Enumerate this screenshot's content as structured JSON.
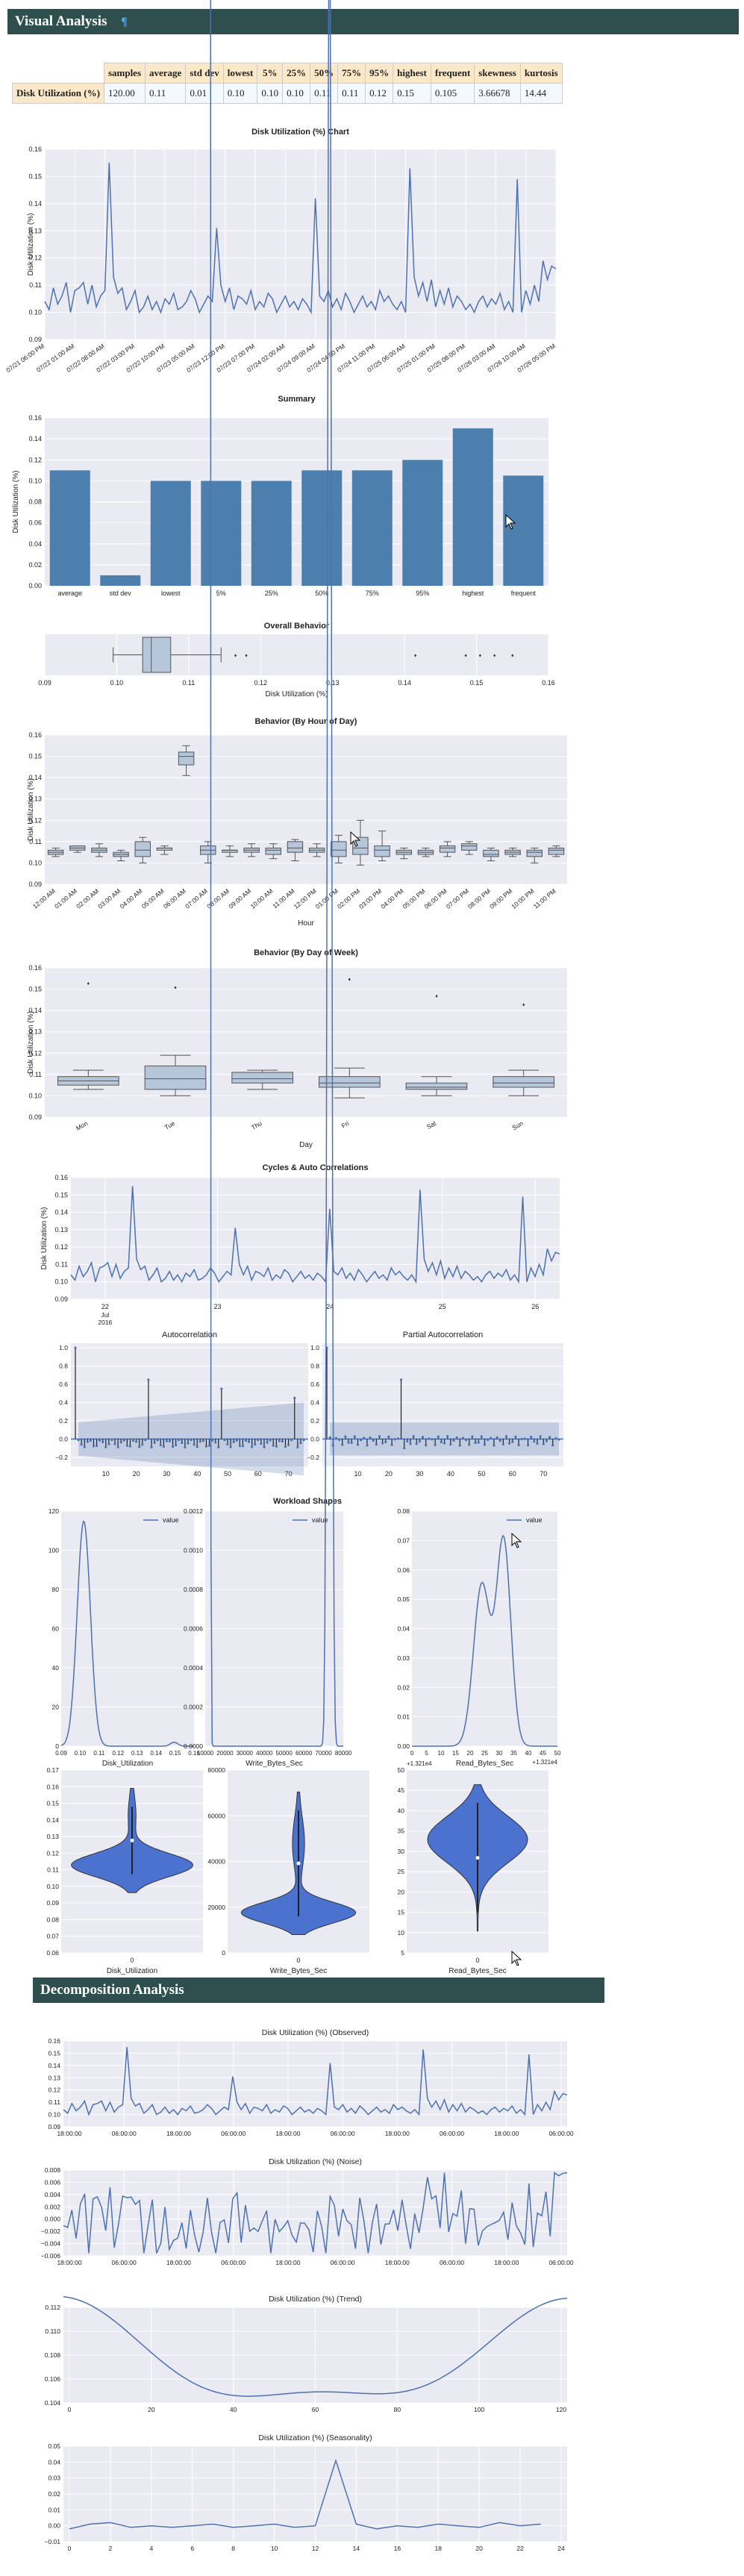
{
  "sections": {
    "visual": {
      "title": "Visual Analysis",
      "anchor": "¶"
    },
    "decomposition": {
      "title": "Decomposition Analysis"
    }
  },
  "stats_table": {
    "row_label": "Disk Utilization (%)",
    "headers": [
      "samples",
      "average",
      "std dev",
      "lowest",
      "5%",
      "25%",
      "50%",
      "75%",
      "95%",
      "highest",
      "frequent",
      "skewness",
      "kurtosis"
    ],
    "values": [
      "120.00",
      "0.11",
      "0.01",
      "0.10",
      "0.10",
      "0.10",
      "0.11",
      "0.11",
      "0.12",
      "0.15",
      "0.105",
      "3.66678",
      "14.44"
    ]
  },
  "colors": {
    "line": "#4c72b0",
    "bar": "#4c7fae",
    "box": "#b6c7dc",
    "violin": "#4c72d0",
    "panel": "#eaeaf2",
    "banner": "#2f4f4f"
  },
  "chart_data": [
    {
      "id": "ts",
      "type": "line",
      "title": "Disk Utilization (%) Chart",
      "ylabel": "Disk Utilization (%)",
      "ylim": [
        0.09,
        0.16
      ],
      "yticks": [
        "0.09",
        "0.10",
        "0.11",
        "0.12",
        "0.13",
        "0.14",
        "0.15",
        "0.16"
      ],
      "xticks": [
        "07/21 06:00 PM",
        "07/22 01:00 AM",
        "07/22 08:00 AM",
        "07/22 03:00 PM",
        "07/22 10:00 PM",
        "07/23 05:00 AM",
        "07/23 12:00 PM",
        "07/23 07:00 PM",
        "07/24 02:00 AM",
        "07/24 09:00 AM",
        "07/24 04:00 PM",
        "07/24 11:00 PM",
        "07/25 06:00 AM",
        "07/25 01:00 PM",
        "07/25 08:00 PM",
        "07/26 03:00 AM",
        "07/26 10:00 AM",
        "07/26 05:00 PM"
      ],
      "values": [
        0.104,
        0.101,
        0.109,
        0.103,
        0.106,
        0.111,
        0.1,
        0.108,
        0.109,
        0.111,
        0.103,
        0.11,
        0.102,
        0.106,
        0.108,
        0.155,
        0.113,
        0.107,
        0.109,
        0.101,
        0.104,
        0.108,
        0.1,
        0.102,
        0.106,
        0.101,
        0.104,
        0.1,
        0.105,
        0.103,
        0.107,
        0.101,
        0.102,
        0.104,
        0.108,
        0.105,
        0.1,
        0.103,
        0.106,
        0.104,
        0.131,
        0.11,
        0.104,
        0.109,
        0.101,
        0.106,
        0.105,
        0.103,
        0.108,
        0.101,
        0.104,
        0.102,
        0.107,
        0.105,
        0.1,
        0.103,
        0.106,
        0.102,
        0.104,
        0.101,
        0.105,
        0.103,
        0.1,
        0.142,
        0.106,
        0.104,
        0.108,
        0.102,
        0.105,
        0.101,
        0.107,
        0.104,
        0.1,
        0.103,
        0.106,
        0.102,
        0.104,
        0.101,
        0.108,
        0.104,
        0.106,
        0.103,
        0.101,
        0.104,
        0.1,
        0.153,
        0.113,
        0.106,
        0.111,
        0.104,
        0.112,
        0.102,
        0.108,
        0.103,
        0.109,
        0.102,
        0.106,
        0.104,
        0.101,
        0.103,
        0.1,
        0.104,
        0.106,
        0.102,
        0.105,
        0.103,
        0.107,
        0.101,
        0.104,
        0.1,
        0.149,
        0.1,
        0.108,
        0.103,
        0.11,
        0.104,
        0.119,
        0.112,
        0.117,
        0.116
      ]
    },
    {
      "id": "summary",
      "type": "bar",
      "title": "Summary",
      "ylabel": "Disk Utilization (%)",
      "ylim": [
        0,
        0.16
      ],
      "yticks": [
        "0.00",
        "0.02",
        "0.04",
        "0.06",
        "0.08",
        "0.10",
        "0.12",
        "0.14",
        "0.16"
      ],
      "categories": [
        "average",
        "std dev",
        "lowest",
        "5%",
        "25%",
        "50%",
        "75%",
        "95%",
        "highest",
        "frequent"
      ],
      "values": [
        0.11,
        0.01,
        0.1,
        0.1,
        0.1,
        0.11,
        0.11,
        0.12,
        0.15,
        0.105
      ]
    },
    {
      "id": "overall",
      "type": "box",
      "title": "Overall Behavior",
      "xlabel": "Disk Utilization (%)",
      "xlim": [
        0.09,
        0.16
      ],
      "xticks": [
        "0.09",
        "0.10",
        "0.11",
        "0.12",
        "0.13",
        "0.14",
        "0.15",
        "0.16"
      ],
      "box": {
        "min": 0.0995,
        "q1": 0.1036,
        "median": 0.1048,
        "q3": 0.1075,
        "max": 0.1145,
        "fliers": [
          0.1165,
          0.118,
          0.1415,
          0.1485,
          0.1505,
          0.1525,
          0.155
        ]
      }
    },
    {
      "id": "hourly",
      "type": "box",
      "title": "Behavior (By Hour of Day)",
      "xlabel": "Hour",
      "ylabel": "Disk Utilization (%)",
      "ylim": [
        0.09,
        0.16
      ],
      "yticks": [
        "0.09",
        "0.10",
        "0.11",
        "0.12",
        "0.13",
        "0.14",
        "0.15",
        "0.16"
      ],
      "categories": [
        "12:00 AM",
        "01:00 AM",
        "02:00 AM",
        "03:00 AM",
        "04:00 AM",
        "05:00 AM",
        "06:00 AM",
        "07:00 AM",
        "08:00 AM",
        "09:00 AM",
        "10:00 AM",
        "11:00 AM",
        "12:00 PM",
        "01:00 PM",
        "02:00 PM",
        "03:00 PM",
        "04:00 PM",
        "05:00 PM",
        "06:00 PM",
        "07:00 PM",
        "08:00 PM",
        "09:00 PM",
        "10:00 PM",
        "11:00 PM"
      ],
      "boxes": [
        [
          0.103,
          0.104,
          0.105,
          0.106,
          0.107
        ],
        [
          0.105,
          0.106,
          0.107,
          0.108,
          0.108
        ],
        [
          0.103,
          0.105,
          0.106,
          0.107,
          0.109
        ],
        [
          0.101,
          0.103,
          0.104,
          0.105,
          0.106
        ],
        [
          0.1,
          0.103,
          0.106,
          0.11,
          0.112
        ],
        [
          0.104,
          0.106,
          0.107,
          0.107,
          0.108
        ],
        [
          0.141,
          0.146,
          0.15,
          0.152,
          0.155
        ],
        [
          0.1,
          0.104,
          0.106,
          0.108,
          0.11
        ],
        [
          0.103,
          0.105,
          0.106,
          0.106,
          0.108
        ],
        [
          0.103,
          0.105,
          0.106,
          0.107,
          0.109
        ],
        [
          0.102,
          0.104,
          0.106,
          0.107,
          0.109
        ],
        [
          0.101,
          0.105,
          0.107,
          0.11,
          0.111
        ],
        [
          0.103,
          0.105,
          0.106,
          0.107,
          0.109
        ],
        [
          0.1,
          0.103,
          0.106,
          0.11,
          0.113
        ],
        [
          0.099,
          0.104,
          0.107,
          0.112,
          0.12
        ],
        [
          0.101,
          0.103,
          0.106,
          0.108,
          0.115
        ],
        [
          0.102,
          0.104,
          0.105,
          0.106,
          0.107
        ],
        [
          0.103,
          0.104,
          0.105,
          0.106,
          0.107
        ],
        [
          0.103,
          0.105,
          0.107,
          0.108,
          0.11
        ],
        [
          0.104,
          0.106,
          0.108,
          0.109,
          0.11
        ],
        [
          0.101,
          0.103,
          0.104,
          0.106,
          0.107
        ],
        [
          0.103,
          0.104,
          0.105,
          0.106,
          0.107
        ],
        [
          0.1,
          0.103,
          0.105,
          0.106,
          0.107
        ],
        [
          0.103,
          0.104,
          0.106,
          0.107,
          0.108
        ]
      ]
    },
    {
      "id": "daily",
      "type": "box",
      "title": "Behavior (By Day of Week)",
      "xlabel": "Day",
      "ylabel": "Disk Utilization (%)",
      "ylim": [
        0.09,
        0.16
      ],
      "yticks": [
        "0.09",
        "0.10",
        "0.11",
        "0.12",
        "0.13",
        "0.14",
        "0.15",
        "0.16"
      ],
      "categories": [
        "Mon",
        "Tue",
        "Thu",
        "Fri",
        "Sat",
        "Sun"
      ],
      "boxes": [
        [
          0.103,
          0.105,
          0.107,
          0.109,
          0.112
        ],
        [
          0.1,
          0.103,
          0.108,
          0.114,
          0.119
        ],
        [
          0.103,
          0.106,
          0.108,
          0.111,
          0.112
        ],
        [
          0.099,
          0.104,
          0.106,
          0.109,
          0.113
        ],
        [
          0.1,
          0.103,
          0.104,
          0.106,
          0.109
        ],
        [
          0.1,
          0.104,
          0.106,
          0.109,
          0.112
        ]
      ],
      "fliers": [
        [
          0.153
        ],
        [
          0.151
        ],
        [],
        [
          0.155
        ],
        [
          0.147
        ],
        [
          0.143
        ]
      ]
    },
    {
      "id": "cycles",
      "type": "line",
      "title": "Cycles & Auto Correlations",
      "ylabel": "Disk Utilization (%)",
      "ylim": [
        0.09,
        0.16
      ],
      "yticks": [
        "0.09",
        "0.10",
        "0.11",
        "0.12",
        "0.13",
        "0.14",
        "0.15",
        "0.16"
      ],
      "xticks": [
        "22",
        "23",
        "24",
        "25",
        "26"
      ],
      "xsub": [
        "Jul",
        "2016"
      ]
    },
    {
      "id": "acf",
      "type": "bar",
      "title": "Autocorrelation",
      "ylim": [
        -0.3,
        1.05
      ],
      "yticks": [
        "−0.2",
        "0.0",
        "0.2",
        "0.4",
        "0.6",
        "0.8",
        "1.0"
      ],
      "xticks": [
        "10",
        "20",
        "30",
        "40",
        "50",
        "60",
        "70"
      ]
    },
    {
      "id": "pacf",
      "type": "bar",
      "title": "Partial Autocorrelation",
      "ylim": [
        -0.3,
        1.05
      ],
      "yticks": [
        "−0.2",
        "0.0",
        "0.2",
        "0.4",
        "0.6",
        "0.8",
        "1.0"
      ],
      "xticks": [
        "10",
        "20",
        "30",
        "40",
        "50",
        "60",
        "70"
      ]
    },
    {
      "id": "kde",
      "type": "area",
      "title": "Workload Shapes",
      "legend": "value",
      "panels": [
        {
          "xlabel": "Disk_Utilization",
          "xticks": [
            "0.09",
            "0.10",
            "0.11",
            "0.12",
            "0.13",
            "0.14",
            "0.15",
            "0.16"
          ],
          "yticks": [
            "0",
            "20",
            "40",
            "60",
            "80",
            "100",
            "120"
          ]
        },
        {
          "xlabel": "Write_Bytes_Sec",
          "xticks": [
            "10000",
            "20000",
            "30000",
            "40000",
            "50000",
            "60000",
            "70000",
            "80000"
          ],
          "yticks": [
            "0.0000",
            "0.0002",
            "0.0004",
            "0.0006",
            "0.0008",
            "0.0010",
            "0.0012"
          ]
        },
        {
          "xlabel": "Read_Bytes_Sec",
          "xticks": [
            "0",
            "5",
            "10",
            "15",
            "20",
            "25",
            "30",
            "35",
            "40",
            "45",
            "50"
          ],
          "yticks": [
            "0.00",
            "0.01",
            "0.02",
            "0.03",
            "0.04",
            "0.05",
            "0.06",
            "0.07",
            "0.08"
          ],
          "offset": "+1.321e4"
        }
      ]
    },
    {
      "id": "violin",
      "type": "violin",
      "panels": [
        {
          "xlabel": "Disk_Utilization",
          "cat": "0",
          "yticks": [
            "0.06",
            "0.07",
            "0.08",
            "0.09",
            "0.10",
            "0.11",
            "0.12",
            "0.13",
            "0.14",
            "0.15",
            "0.16",
            "0.17"
          ]
        },
        {
          "xlabel": "Write_Bytes_Sec",
          "cat": "0",
          "yticks": [
            "0",
            "20000",
            "40000",
            "60000",
            "80000"
          ]
        },
        {
          "xlabel": "Read_Bytes_Sec",
          "cat": "0",
          "yticks": [
            "5",
            "10",
            "15",
            "20",
            "25",
            "30",
            "35",
            "40",
            "45",
            "50"
          ],
          "offset": "+1.321e4"
        }
      ]
    },
    {
      "id": "observed",
      "type": "line",
      "title": "Disk Utilization (%)   (Observed)",
      "yticks": [
        "0.09",
        "0.10",
        "0.11",
        "0.12",
        "0.13",
        "0.14",
        "0.15",
        "0.16"
      ],
      "xticks": [
        "18:00:00",
        "06:00:00",
        "18:00:00",
        "06:00:00",
        "18:00:00",
        "06:00:00",
        "18:00:00",
        "06:00:00",
        "18:00:00",
        "06:00:00"
      ]
    },
    {
      "id": "noise",
      "type": "line",
      "title": "Disk Utilization (%)   (Noise)",
      "yticks": [
        "−0.006",
        "−0.004",
        "−0.002",
        "0.000",
        "0.002",
        "0.004",
        "0.006",
        "0.008"
      ],
      "xticks": [
        "18:00:00",
        "06:00:00",
        "18:00:00",
        "06:00:00",
        "18:00:00",
        "06:00:00",
        "18:00:00",
        "06:00:00",
        "18:00:00",
        "06:00:00"
      ]
    },
    {
      "id": "trend",
      "type": "line",
      "title": "Disk Utilization (%)   (Trend)",
      "yticks": [
        "0.104",
        "0.106",
        "0.108",
        "0.110",
        "0.112"
      ],
      "xticks": [
        "0",
        "20",
        "40",
        "60",
        "80",
        "100",
        "120"
      ]
    },
    {
      "id": "seasonality",
      "type": "line",
      "title": "Disk Utilization (%)   (Seasonality)",
      "yticks": [
        "−0.01",
        "0.00",
        "0.01",
        "0.02",
        "0.03",
        "0.04",
        "0.05"
      ],
      "xticks": [
        "0",
        "2",
        "4",
        "6",
        "8",
        "10",
        "12",
        "14",
        "16",
        "18",
        "20",
        "22",
        "24"
      ],
      "values": [
        -0.002,
        0.001,
        0.002,
        -0.001,
        0.0,
        -0.001,
        0.0,
        0.001,
        -0.001,
        0.0,
        0.001,
        -0.001,
        0.0,
        0.041,
        0.001,
        -0.002,
        0.0,
        -0.001,
        0.001,
        0.0,
        -0.001,
        0.002,
        0.0,
        0.001
      ]
    }
  ]
}
